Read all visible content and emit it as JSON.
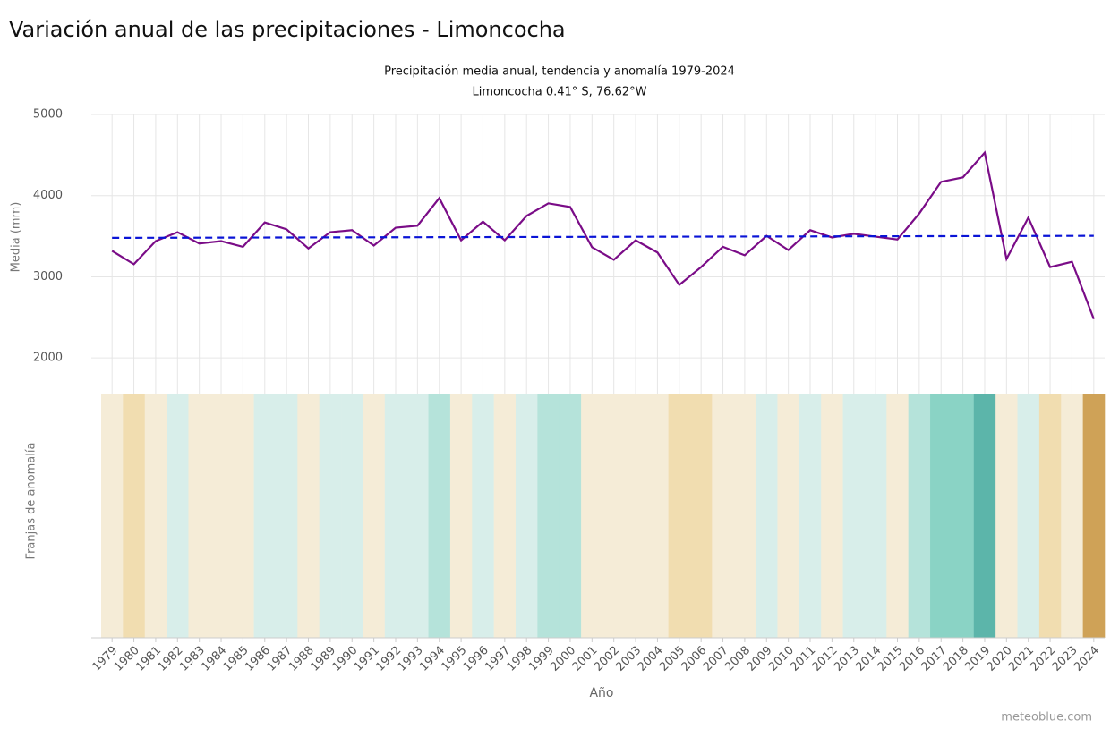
{
  "chart_data": {
    "type": "line",
    "title": "Variación anual de las precipitaciones - Limoncocha",
    "subtitle": [
      "Precipitación media anual, tendencia y anomalía 1979-2024",
      "Limoncocha 0.41° S, 76.62°W"
    ],
    "ylabel": "Media (mm)",
    "stripes_label": "Franjas de anomalía",
    "xlabel": "Año",
    "credit": "meteoblue.com",
    "x": [
      1979,
      1980,
      1981,
      1982,
      1983,
      1984,
      1985,
      1986,
      1987,
      1988,
      1989,
      1990,
      1991,
      1992,
      1993,
      1994,
      1995,
      1996,
      1997,
      1998,
      1999,
      2000,
      2001,
      2002,
      2003,
      2004,
      2005,
      2006,
      2007,
      2008,
      2009,
      2010,
      2011,
      2012,
      2013,
      2014,
      2015,
      2016,
      2017,
      2018,
      2019,
      2020,
      2021,
      2022,
      2023,
      2024
    ],
    "series": [
      {
        "color": "#7a0c87",
        "values": [
          3320,
          3155,
          3440,
          3550,
          3410,
          3440,
          3370,
          3670,
          3585,
          3350,
          3550,
          3575,
          3385,
          3605,
          3630,
          3970,
          3450,
          3680,
          3450,
          3750,
          3905,
          3860,
          3365,
          3210,
          3450,
          3300,
          2900,
          3120,
          3370,
          3265,
          3505,
          3330,
          3575,
          3485,
          3530,
          3495,
          3460,
          3780,
          4170,
          4225,
          4530,
          3220,
          3730,
          3120,
          3185,
          2480
        ]
      }
    ],
    "trend": {
      "color": "#0a14d6",
      "x": [
        1979,
        2024
      ],
      "values": [
        3480,
        3505
      ]
    },
    "stripe_colors": [
      "#f5ecd7",
      "#f1ddb0",
      "#f5ecd7",
      "#d8eeea",
      "#f5ecd7",
      "#f5ecd7",
      "#f5ecd7",
      "#d8eeea",
      "#d8eeea",
      "#f5ecd7",
      "#d8eeea",
      "#d8eeea",
      "#f5ecd7",
      "#d8eeea",
      "#d8eeea",
      "#b5e3da",
      "#f5ecd7",
      "#d8eeea",
      "#f5ecd7",
      "#d8eeea",
      "#b5e3da",
      "#b5e3da",
      "#f5ecd7",
      "#f5ecd7",
      "#f5ecd7",
      "#f5ecd7",
      "#f1ddb0",
      "#f1ddb0",
      "#f5ecd7",
      "#f5ecd7",
      "#d8eeea",
      "#f5ecd7",
      "#d8eeea",
      "#f5ecd7",
      "#d8eeea",
      "#d8eeea",
      "#f5ecd7",
      "#b5e3da",
      "#8ad3c5",
      "#8ad3c5",
      "#5cb5aa",
      "#f5ecd7",
      "#d8eeea",
      "#f1ddb0",
      "#f5ecd7",
      "#cfa257"
    ],
    "xlim": [
      1978.5,
      2024.5
    ],
    "ylim": [
      1550,
      5000
    ],
    "yticks": [
      2000,
      3000,
      4000,
      5000
    ],
    "grid": true
  }
}
